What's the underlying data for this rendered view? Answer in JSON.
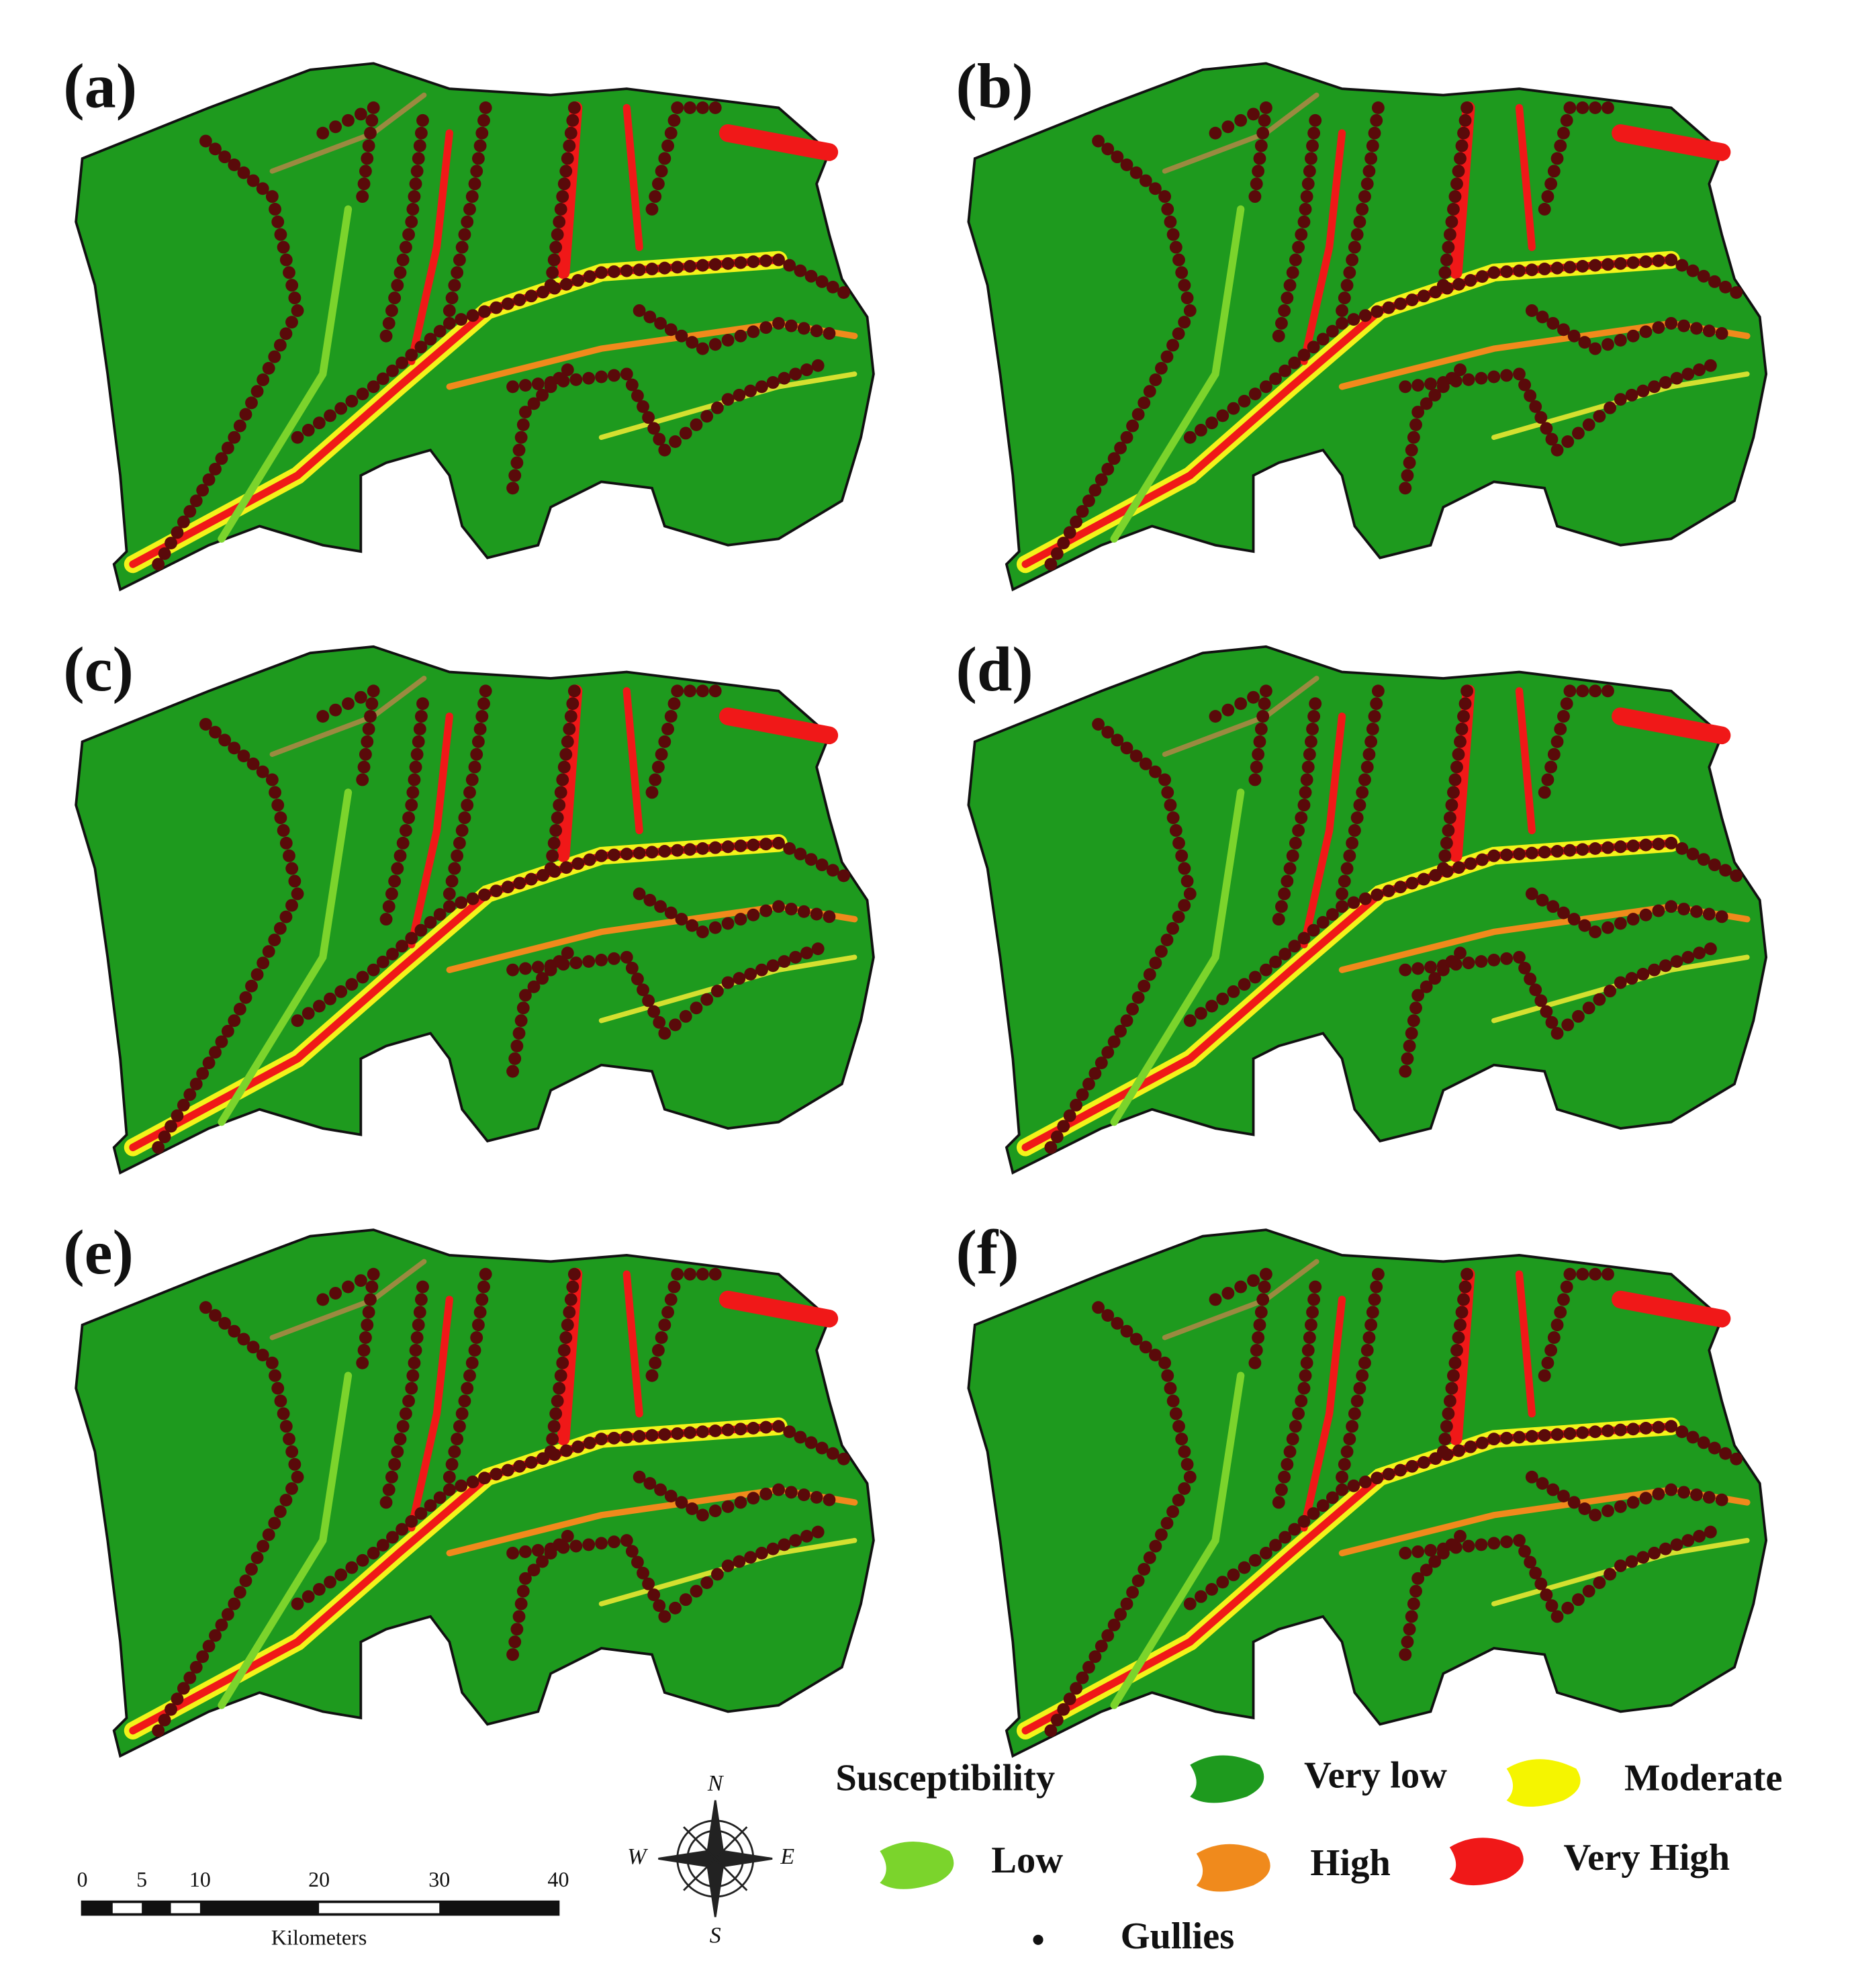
{
  "panels": [
    {
      "label": "(a)"
    },
    {
      "label": "(b)"
    },
    {
      "label": "(c)"
    },
    {
      "label": "(d)"
    },
    {
      "label": "(e)"
    },
    {
      "label": "(f)"
    }
  ],
  "legend": {
    "title": "Susceptibility",
    "items": [
      "Very low",
      "Moderate",
      "Low",
      "High",
      "Very High"
    ],
    "gullies": "Gullies"
  },
  "scale_bar": {
    "ticks": [
      "0",
      "5",
      "10",
      "20",
      "30",
      "40"
    ],
    "unit": "Kilometers"
  },
  "compass": {
    "n": "N",
    "w": "W",
    "e": "E",
    "s": "S"
  }
}
